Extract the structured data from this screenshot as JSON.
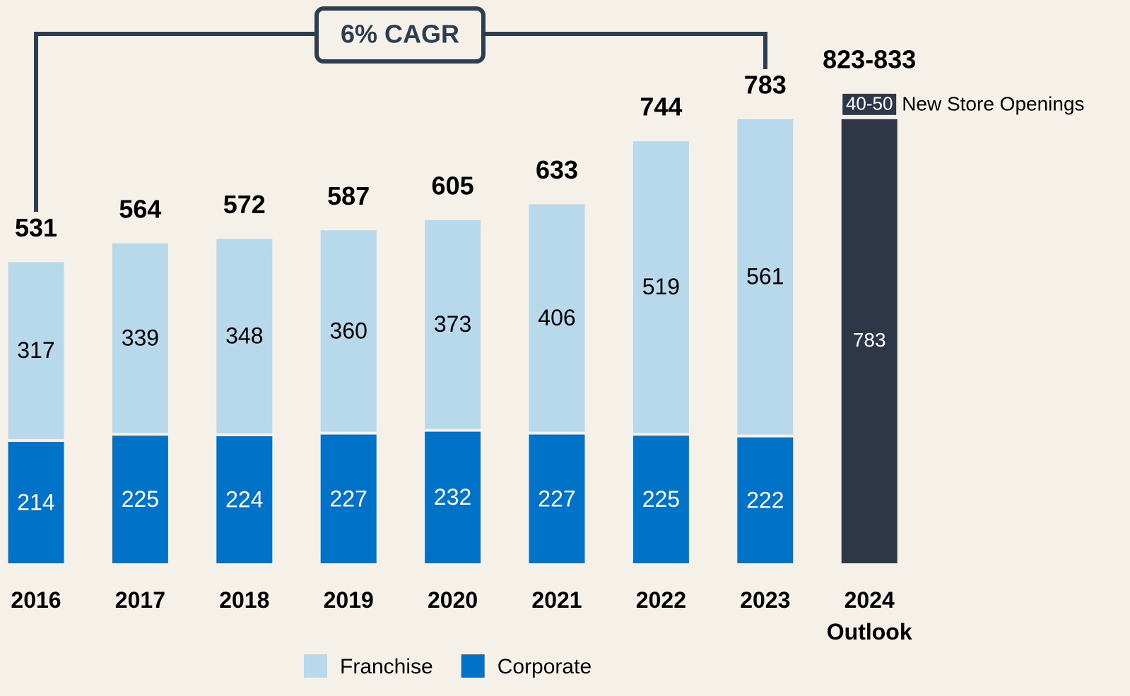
{
  "chart_data": {
    "type": "stacked-bar",
    "annotation": "6% CAGR",
    "categories": [
      "2016",
      "2017",
      "2018",
      "2019",
      "2020",
      "2021",
      "2022",
      "2023",
      "2024 Outlook"
    ],
    "series": [
      {
        "name": "Corporate",
        "color": "#0073c8",
        "values": [
          214,
          225,
          224,
          227,
          232,
          227,
          225,
          222,
          null
        ]
      },
      {
        "name": "Franchise",
        "color": "#b8d8ec",
        "values": [
          317,
          339,
          348,
          360,
          373,
          406,
          519,
          561,
          null
        ]
      }
    ],
    "totals": [
      531,
      564,
      572,
      587,
      605,
      633,
      744,
      783,
      null
    ],
    "outlook": {
      "base": 783,
      "color": "#2d3748",
      "total_label": "823-833",
      "openings_label": "40-50",
      "openings_text": "New Store Openings"
    },
    "legend_order": [
      1,
      0
    ]
  }
}
